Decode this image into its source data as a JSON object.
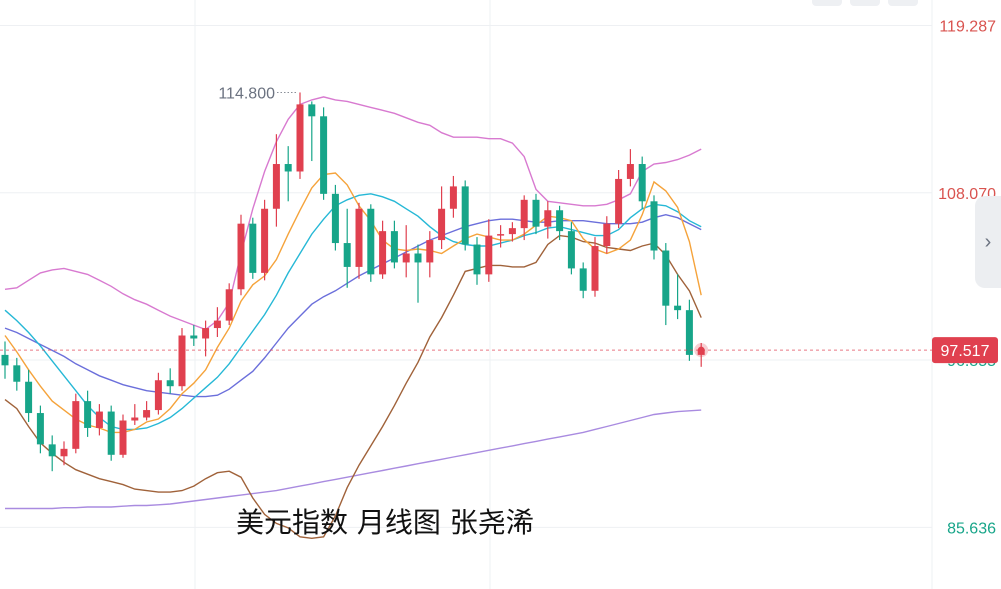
{
  "caption": "美元指数 月线图 张尧浠",
  "chart_data": {
    "type": "candlestick",
    "y_ticks": [
      {
        "value": 119.287,
        "label": "119.287",
        "color": "#d9534f"
      },
      {
        "value": 108.07,
        "label": "108.070",
        "color": "#d9534f"
      },
      {
        "value": 96.855,
        "label": "96.855",
        "color": "#17a589"
      },
      {
        "value": 85.636,
        "label": "85.636",
        "color": "#17a589"
      }
    ],
    "current_price": {
      "value": 97.517,
      "label": "97.517",
      "color": "#e0404f"
    },
    "max_annotation": {
      "value": 114.8,
      "label": "114.800"
    },
    "ylim": [
      81.5,
      121.0
    ],
    "x_count": 60,
    "colors": {
      "up": "#e0404f",
      "down": "#17a589",
      "ma5": "#f5a33b",
      "ma10": "#26b8d6",
      "ma20": "#6b6fdb",
      "ma60": "#a98be0",
      "boll_upper": "#d87ad0",
      "boll_lower": "#a0623a"
    },
    "candles": [
      [
        97.2,
        96.5,
        98.1,
        95.6
      ],
      [
        96.5,
        95.4,
        97.0,
        94.8
      ],
      [
        95.4,
        93.3,
        96.2,
        92.7
      ],
      [
        93.3,
        91.2,
        93.8,
        90.6
      ],
      [
        91.2,
        90.4,
        91.8,
        89.4
      ],
      [
        90.4,
        90.9,
        91.4,
        89.8
      ],
      [
        90.9,
        94.1,
        94.6,
        90.6
      ],
      [
        94.1,
        92.3,
        94.8,
        91.7
      ],
      [
        92.3,
        93.4,
        93.9,
        91.8
      ],
      [
        93.4,
        90.5,
        93.8,
        90.1
      ],
      [
        90.5,
        92.8,
        93.2,
        90.3
      ],
      [
        92.8,
        93.0,
        93.9,
        92.5
      ],
      [
        93.0,
        93.5,
        94.1,
        92.8
      ],
      [
        93.5,
        95.5,
        96.0,
        93.2
      ],
      [
        95.5,
        95.1,
        96.3,
        94.6
      ],
      [
        95.1,
        98.5,
        99.0,
        94.8
      ],
      [
        98.5,
        98.3,
        99.2,
        97.8
      ],
      [
        98.3,
        99.0,
        99.5,
        97.1
      ],
      [
        99.0,
        99.5,
        100.4,
        98.4
      ],
      [
        99.5,
        101.6,
        102.0,
        99.2
      ],
      [
        101.6,
        106.0,
        106.6,
        101.2
      ],
      [
        106.0,
        102.7,
        106.4,
        102.3
      ],
      [
        102.7,
        107.0,
        107.6,
        102.2
      ],
      [
        107.0,
        110.0,
        112.0,
        105.8
      ],
      [
        110.0,
        109.5,
        111.2,
        107.5
      ],
      [
        109.5,
        114.0,
        114.8,
        109.0
      ],
      [
        114.0,
        113.2,
        114.2,
        110.2
      ],
      [
        113.2,
        108.0,
        113.8,
        107.6
      ],
      [
        108.0,
        104.7,
        108.6,
        104.2
      ],
      [
        104.7,
        103.1,
        107.0,
        101.7
      ],
      [
        103.1,
        107.0,
        107.4,
        102.3
      ],
      [
        107.0,
        102.6,
        107.3,
        102.1
      ],
      [
        102.6,
        105.5,
        106.2,
        102.3
      ],
      [
        105.5,
        103.4,
        106.2,
        103.0
      ],
      [
        103.4,
        104.0,
        105.9,
        102.4
      ],
      [
        104.0,
        103.4,
        104.6,
        100.7
      ],
      [
        103.4,
        104.9,
        105.5,
        102.4
      ],
      [
        104.9,
        107.0,
        108.5,
        104.3
      ],
      [
        107.0,
        108.5,
        109.2,
        106.4
      ],
      [
        108.5,
        104.6,
        108.9,
        104.2
      ],
      [
        104.6,
        102.6,
        105.1,
        101.9
      ],
      [
        102.6,
        105.2,
        106.3,
        102.1
      ],
      [
        105.2,
        105.3,
        105.9,
        104.4
      ],
      [
        105.3,
        105.7,
        106.1,
        104.8
      ],
      [
        105.7,
        107.6,
        107.9,
        104.9
      ],
      [
        107.6,
        105.8,
        108.0,
        105.3
      ],
      [
        105.8,
        106.9,
        107.5,
        105.0
      ],
      [
        106.9,
        105.5,
        107.2,
        104.9
      ],
      [
        105.5,
        103.0,
        106.1,
        102.6
      ],
      [
        103.0,
        101.5,
        103.4,
        101.0
      ],
      [
        101.5,
        104.5,
        105.1,
        101.1
      ],
      [
        104.5,
        106.0,
        106.5,
        104.0
      ],
      [
        106.0,
        109.0,
        109.6,
        105.7
      ],
      [
        109.0,
        110.0,
        111.0,
        108.5
      ],
      [
        110.0,
        107.5,
        110.5,
        107.0
      ],
      [
        107.5,
        104.2,
        107.9,
        103.6
      ],
      [
        104.2,
        100.5,
        104.7,
        99.2
      ],
      [
        100.5,
        100.2,
        102.6,
        99.6
      ],
      [
        100.2,
        97.2,
        100.9,
        96.8
      ],
      [
        97.2,
        97.5,
        98.0,
        96.4
      ]
    ],
    "lines": {
      "boll_upper": [
        101.6,
        101.7,
        102.2,
        102.7,
        102.9,
        103.0,
        102.8,
        102.6,
        102.2,
        101.8,
        101.3,
        100.9,
        100.6,
        100.2,
        99.8,
        99.5,
        99.2,
        98.9,
        99.5,
        100.7,
        104.0,
        107.0,
        109.5,
        111.5,
        113.0,
        114.0,
        114.3,
        114.5,
        114.3,
        114.2,
        114.0,
        113.8,
        113.6,
        113.4,
        113.1,
        112.8,
        112.6,
        112.1,
        111.8,
        111.8,
        111.8,
        111.7,
        111.7,
        111.4,
        110.5,
        108.3,
        107.5,
        107.4,
        107.3,
        107.2,
        107.2,
        107.3,
        107.6,
        108.0,
        109.5,
        110.0,
        110.1,
        110.3,
        110.6,
        111.0
      ],
      "boll_lower": [
        94.2,
        93.6,
        92.4,
        91.3,
        90.6,
        90.0,
        89.5,
        89.2,
        88.9,
        88.7,
        88.5,
        88.2,
        88.1,
        88.0,
        88.0,
        88.1,
        88.4,
        88.9,
        89.3,
        89.4,
        89.0,
        87.6,
        86.5,
        85.9,
        85.6,
        85.0,
        84.9,
        85.0,
        86.4,
        88.3,
        89.8,
        91.1,
        92.4,
        93.8,
        95.3,
        96.7,
        98.4,
        99.7,
        101.2,
        102.8,
        103.0,
        103.2,
        103.2,
        103.1,
        103.1,
        103.4,
        104.6,
        105.2,
        105.1,
        104.8,
        104.7,
        104.4,
        104.3,
        104.2,
        104.5,
        104.7,
        103.9,
        102.6,
        101.5,
        99.7
      ],
      "ma5": [
        98.5,
        97.4,
        96.2,
        95.1,
        94.1,
        93.5,
        92.9,
        92.5,
        92.3,
        92.0,
        92.0,
        92.2,
        92.7,
        92.9,
        93.6,
        94.6,
        95.3,
        96.2,
        97.7,
        99.0,
        100.8,
        101.9,
        102.5,
        103.6,
        105.3,
        106.9,
        108.4,
        109.3,
        109.4,
        108.6,
        107.2,
        106.2,
        104.9,
        104.3,
        104.2,
        104.3,
        104.2,
        104.0,
        104.5,
        105.0,
        105.3,
        105.1,
        104.9,
        104.9,
        105.3,
        105.9,
        106.5,
        106.4,
        106.2,
        105.0,
        104.3,
        104.0,
        104.3,
        104.9,
        106.6,
        108.8,
        108.2,
        107.1,
        104.8,
        101.2
      ],
      "ma10": [
        100.2,
        99.5,
        98.7,
        97.8,
        96.8,
        95.8,
        94.8,
        93.8,
        93.0,
        92.4,
        92.2,
        92.2,
        92.3,
        92.6,
        93.0,
        93.6,
        94.3,
        95.0,
        95.7,
        96.6,
        97.7,
        98.8,
        99.9,
        101.2,
        102.7,
        104.0,
        105.3,
        106.3,
        107.2,
        107.6,
        107.9,
        108.0,
        107.8,
        107.5,
        107.0,
        106.5,
        105.8,
        105.2,
        104.8,
        104.6,
        104.5,
        104.5,
        104.7,
        104.9,
        105.2,
        105.4,
        105.7,
        105.8,
        105.6,
        105.4,
        105.2,
        105.2,
        105.6,
        106.4,
        107.0,
        107.3,
        107.2,
        106.8,
        106.2,
        105.8
      ],
      "ma20": [
        99.0,
        98.7,
        98.3,
        97.9,
        97.5,
        97.1,
        96.6,
        96.2,
        95.8,
        95.5,
        95.2,
        95.0,
        94.8,
        94.7,
        94.6,
        94.5,
        94.4,
        94.4,
        94.5,
        94.9,
        95.5,
        96.1,
        97.0,
        98.0,
        99.0,
        99.8,
        100.6,
        101.1,
        101.5,
        102.0,
        102.5,
        102.9,
        103.3,
        103.7,
        104.1,
        104.5,
        104.9,
        105.2,
        105.5,
        105.8,
        106.0,
        106.2,
        106.3,
        106.3,
        106.2,
        106.1,
        106.1,
        106.2,
        106.2,
        106.2,
        106.1,
        106.0,
        106.0,
        106.0,
        106.1,
        106.4,
        106.6,
        106.4,
        106.0,
        105.6
      ],
      "ma60": [
        86.9,
        86.9,
        86.9,
        86.9,
        86.9,
        86.95,
        86.95,
        87.0,
        87.0,
        87.0,
        87.05,
        87.1,
        87.1,
        87.15,
        87.2,
        87.3,
        87.4,
        87.5,
        87.6,
        87.7,
        87.8,
        87.9,
        88.0,
        88.1,
        88.25,
        88.4,
        88.55,
        88.7,
        88.85,
        89.0,
        89.15,
        89.3,
        89.45,
        89.6,
        89.75,
        89.9,
        90.05,
        90.2,
        90.35,
        90.5,
        90.65,
        90.8,
        90.95,
        91.1,
        91.25,
        91.4,
        91.55,
        91.7,
        91.85,
        92.0,
        92.2,
        92.4,
        92.6,
        92.8,
        93.0,
        93.2,
        93.3,
        93.4,
        93.45,
        93.5
      ]
    }
  }
}
